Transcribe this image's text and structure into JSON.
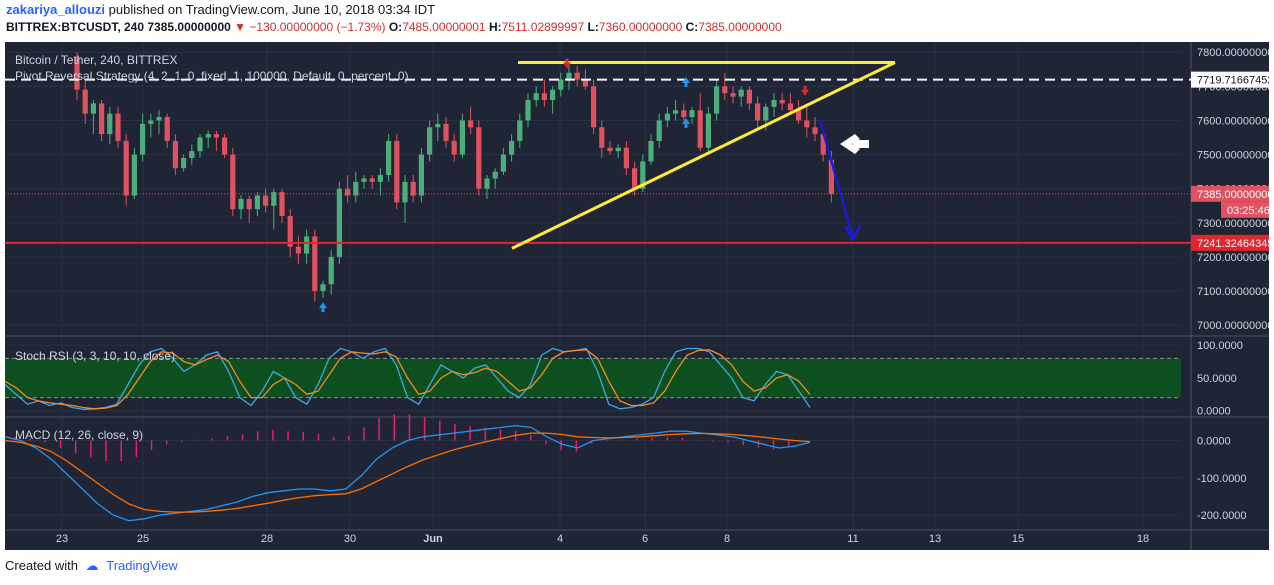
{
  "header": {
    "author": "zakariya_allouzi",
    "published_text": "published on TradingView.com, June 10, 2018 03:34 IDT",
    "symbol": "BITTREX:BTCUSDT, 240",
    "last_price": "7385.00000000",
    "change": "−130.00000000 (−1.73%)",
    "open_label": "O:",
    "open_value": "7485.00000001",
    "high_label": "H:",
    "high_value": "7511.02899997",
    "low_label": "L:",
    "low_value": "7360.00000000",
    "close_label": "C:",
    "close_value": "7385.00000000"
  },
  "legend": {
    "main_title": "Bitcoin / Tether, 240, BITTREX",
    "strategy": "Pivot Reversal Strategy (4, 2, 1, 0, fixed, 1, 100000, Default, 0, percent, 0)",
    "stoch": "Stoch RSI (3, 3, 10, 10, close)",
    "macd": "MACD (12, 26, close, 9)"
  },
  "footer": {
    "created_with": "Created with",
    "brand": "TradingView"
  },
  "colors": {
    "background": "#1f2535",
    "grid": "#2a3145",
    "up": "#4caf7a",
    "down": "#e05260",
    "trendline": "#ffeb3b",
    "support": "#e3262d",
    "arrow": "#1a1ad8",
    "stoch_k": "#3fa9e0",
    "stoch_d": "#f28c28",
    "stoch_band": "#0d4f1f",
    "macd_line": "#2196f3",
    "signal_line": "#ff6d00",
    "histogram": "#e91e63"
  },
  "chart_data": [
    {
      "type": "candlestick",
      "title": "Bitcoin / Tether, 240, BITTREX",
      "x_ticks": [
        "23",
        "25",
        "28",
        "30",
        "Jun",
        "4",
        "6",
        "8",
        "11",
        "13",
        "15",
        "18"
      ],
      "y_ticks": [
        "7800.00000000",
        "7700.00000000",
        "7600.00000000",
        "7500.00000000",
        "7400.00000000",
        "7300.00000000",
        "7200.00000000",
        "7100.00000000",
        "7000.00000000"
      ],
      "ylim": [
        6980,
        7830
      ],
      "current_price_label": "7385.00000000",
      "countdown_label": "03:25:46",
      "pivot_label": "7719.71667452",
      "support_label": "7241.32464345",
      "candles": [
        [
          7780,
          7800,
          7660,
          7690
        ],
        [
          7690,
          7720,
          7590,
          7620
        ],
        [
          7620,
          7660,
          7560,
          7650
        ],
        [
          7650,
          7660,
          7540,
          7560
        ],
        [
          7560,
          7640,
          7530,
          7620
        ],
        [
          7620,
          7640,
          7520,
          7540
        ],
        [
          7540,
          7560,
          7350,
          7380
        ],
        [
          7380,
          7520,
          7370,
          7500
        ],
        [
          7500,
          7620,
          7480,
          7590
        ],
        [
          7590,
          7620,
          7550,
          7600
        ],
        [
          7600,
          7630,
          7560,
          7610
        ],
        [
          7610,
          7620,
          7520,
          7540
        ],
        [
          7540,
          7560,
          7440,
          7460
        ],
        [
          7460,
          7500,
          7450,
          7490
        ],
        [
          7490,
          7530,
          7470,
          7510
        ],
        [
          7510,
          7560,
          7490,
          7550
        ],
        [
          7550,
          7570,
          7520,
          7560
        ],
        [
          7560,
          7570,
          7510,
          7550
        ],
        [
          7550,
          7560,
          7490,
          7500
        ],
        [
          7500,
          7520,
          7320,
          7340
        ],
        [
          7340,
          7380,
          7310,
          7370
        ],
        [
          7370,
          7380,
          7300,
          7340
        ],
        [
          7340,
          7390,
          7320,
          7380
        ],
        [
          7380,
          7400,
          7330,
          7350
        ],
        [
          7350,
          7400,
          7280,
          7390
        ],
        [
          7390,
          7400,
          7300,
          7320
        ],
        [
          7320,
          7340,
          7200,
          7230
        ],
        [
          7230,
          7260,
          7180,
          7210
        ],
        [
          7210,
          7280,
          7180,
          7260
        ],
        [
          7260,
          7280,
          7070,
          7100
        ],
        [
          7100,
          7130,
          7080,
          7120
        ],
        [
          7120,
          7220,
          7090,
          7200
        ],
        [
          7200,
          7420,
          7180,
          7400
        ],
        [
          7400,
          7440,
          7360,
          7380
        ],
        [
          7380,
          7450,
          7360,
          7420
        ],
        [
          7420,
          7440,
          7400,
          7430
        ],
        [
          7430,
          7440,
          7400,
          7420
        ],
        [
          7420,
          7460,
          7380,
          7440
        ],
        [
          7440,
          7560,
          7420,
          7540
        ],
        [
          7540,
          7560,
          7340,
          7360
        ],
        [
          7360,
          7440,
          7300,
          7420
        ],
        [
          7420,
          7440,
          7360,
          7380
        ],
        [
          7380,
          7520,
          7360,
          7500
        ],
        [
          7500,
          7600,
          7480,
          7580
        ],
        [
          7580,
          7620,
          7540,
          7590
        ],
        [
          7590,
          7610,
          7520,
          7540
        ],
        [
          7540,
          7560,
          7480,
          7500
        ],
        [
          7500,
          7620,
          7490,
          7600
        ],
        [
          7600,
          7640,
          7560,
          7580
        ],
        [
          7580,
          7600,
          7380,
          7400
        ],
        [
          7400,
          7440,
          7370,
          7430
        ],
        [
          7430,
          7460,
          7400,
          7450
        ],
        [
          7450,
          7520,
          7440,
          7500
        ],
        [
          7500,
          7560,
          7480,
          7540
        ],
        [
          7540,
          7620,
          7520,
          7600
        ],
        [
          7600,
          7680,
          7580,
          7660
        ],
        [
          7660,
          7700,
          7640,
          7680
        ],
        [
          7680,
          7720,
          7640,
          7660
        ],
        [
          7660,
          7700,
          7620,
          7690
        ],
        [
          7690,
          7740,
          7670,
          7720
        ],
        [
          7720,
          7760,
          7690,
          7740
        ],
        [
          7740,
          7760,
          7700,
          7720
        ],
        [
          7720,
          7750,
          7690,
          7700
        ],
        [
          7700,
          7720,
          7560,
          7580
        ],
        [
          7580,
          7600,
          7490,
          7520
        ],
        [
          7520,
          7540,
          7500,
          7510
        ],
        [
          7510,
          7530,
          7490,
          7520
        ],
        [
          7520,
          7540,
          7440,
          7460
        ],
        [
          7460,
          7480,
          7380,
          7400
        ],
        [
          7400,
          7500,
          7390,
          7480
        ],
        [
          7480,
          7560,
          7470,
          7540
        ],
        [
          7540,
          7620,
          7520,
          7600
        ],
        [
          7600,
          7640,
          7580,
          7620
        ],
        [
          7620,
          7660,
          7600,
          7630
        ],
        [
          7630,
          7650,
          7600,
          7610
        ],
        [
          7610,
          7640,
          7590,
          7630
        ],
        [
          7630,
          7680,
          7510,
          7520
        ],
        [
          7520,
          7640,
          7500,
          7620
        ],
        [
          7620,
          7720,
          7600,
          7700
        ],
        [
          7700,
          7740,
          7660,
          7680
        ],
        [
          7680,
          7700,
          7650,
          7670
        ],
        [
          7670,
          7700,
          7640,
          7690
        ],
        [
          7690,
          7700,
          7630,
          7650
        ],
        [
          7650,
          7670,
          7570,
          7600
        ],
        [
          7600,
          7650,
          7570,
          7640
        ],
        [
          7640,
          7680,
          7610,
          7660
        ],
        [
          7660,
          7680,
          7630,
          7650
        ],
        [
          7650,
          7680,
          7620,
          7630
        ],
        [
          7630,
          7660,
          7590,
          7600
        ],
        [
          7600,
          7640,
          7550,
          7580
        ],
        [
          7580,
          7610,
          7540,
          7560
        ],
        [
          7560,
          7570,
          7480,
          7500
        ],
        [
          7485,
          7511,
          7360,
          7385
        ]
      ]
    },
    {
      "type": "line",
      "title": "Stoch RSI (3, 3, 10, 10, close)",
      "y_ticks": [
        "100.0000",
        "50.0000",
        "0.0000"
      ],
      "ylim": [
        -5,
        108
      ],
      "band": [
        20,
        80
      ],
      "series": [
        {
          "values": [
            40,
            25,
            10,
            15,
            8,
            12,
            5,
            2,
            3,
            5,
            10,
            40,
            70,
            90,
            95,
            80,
            60,
            70,
            85,
            90,
            60,
            20,
            8,
            30,
            60,
            50,
            20,
            10,
            40,
            80,
            95,
            90,
            80,
            90,
            95,
            70,
            20,
            10,
            40,
            70,
            60,
            50,
            65,
            70,
            50,
            30,
            20,
            40,
            85,
            95,
            90,
            92,
            95,
            60,
            10,
            3,
            5,
            10,
            20,
            60,
            90,
            95,
            95,
            90,
            70,
            50,
            20,
            15,
            40,
            60,
            55,
            30,
            5
          ]
        },
        {
          "values": [
            45,
            35,
            20,
            15,
            12,
            10,
            8,
            5,
            3,
            4,
            8,
            25,
            50,
            75,
            90,
            88,
            75,
            70,
            78,
            85,
            75,
            45,
            20,
            20,
            40,
            50,
            40,
            25,
            30,
            55,
            80,
            90,
            88,
            87,
            90,
            82,
            50,
            25,
            30,
            50,
            60,
            55,
            58,
            65,
            60,
            45,
            30,
            35,
            55,
            80,
            90,
            92,
            93,
            80,
            45,
            15,
            8,
            8,
            12,
            30,
            60,
            85,
            92,
            93,
            85,
            70,
            45,
            30,
            35,
            50,
            55,
            45,
            25
          ]
        }
      ]
    },
    {
      "type": "line",
      "title": "MACD (12, 26, close, 9)",
      "y_ticks": [
        "0.0000",
        "-100.0000",
        "-200.0000"
      ],
      "ylim": [
        -240,
        55
      ],
      "series": [
        {
          "values": [
            10,
            0,
            -20,
            -50,
            -90,
            -130,
            -170,
            -200,
            -215,
            -210,
            -200,
            -195,
            -190,
            -185,
            -175,
            -165,
            -150,
            -140,
            -135,
            -130,
            -130,
            -135,
            -130,
            -95,
            -50,
            -20,
            0,
            10,
            15,
            20,
            25,
            30,
            35,
            40,
            35,
            10,
            -10,
            -20,
            0,
            5,
            10,
            15,
            20,
            25,
            25,
            20,
            15,
            10,
            0,
            -10,
            -20,
            -15,
            -5
          ]
        },
        {
          "values": [
            0,
            -5,
            -15,
            -30,
            -55,
            -85,
            -115,
            -145,
            -170,
            -185,
            -190,
            -192,
            -192,
            -190,
            -187,
            -182,
            -175,
            -168,
            -160,
            -153,
            -148,
            -145,
            -143,
            -130,
            -110,
            -90,
            -70,
            -52,
            -38,
            -25,
            -14,
            -4,
            5,
            14,
            20,
            20,
            16,
            10,
            8,
            7,
            8,
            10,
            13,
            16,
            18,
            19,
            18,
            16,
            13,
            9,
            4,
            0,
            -3
          ]
        },
        {
          "values": [
            10,
            5,
            -5,
            -20,
            -35,
            -45,
            -55,
            -55,
            -45,
            -25,
            -10,
            -3,
            2,
            5,
            12,
            17,
            25,
            28,
            25,
            23,
            18,
            10,
            13,
            35,
            60,
            70,
            70,
            62,
            53,
            45,
            39,
            34,
            30,
            26,
            15,
            -10,
            -26,
            -30,
            -8,
            -2,
            2,
            5,
            7,
            9,
            7,
            1,
            -3,
            -6,
            -13,
            -19,
            -24,
            -15,
            -2
          ]
        }
      ]
    }
  ]
}
